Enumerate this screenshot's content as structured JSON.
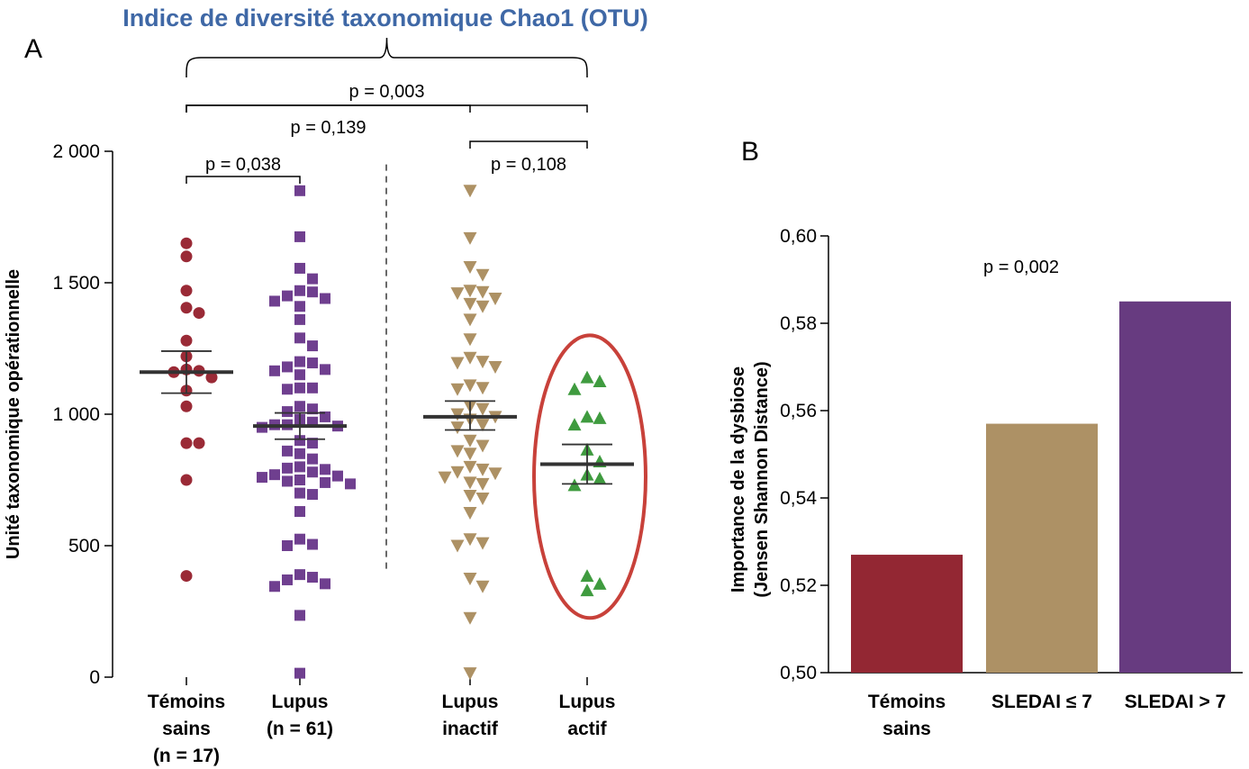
{
  "title": "Indice de diversité taxonomique Chao1 (OTU)",
  "colors": {
    "title": "#3f68a6",
    "temoins": "#9a2a36",
    "lupus": "#6f3f8f",
    "inactif": "#ad9164",
    "actif": "#3f9b3f",
    "ellipse": "#c8413a",
    "bar_temoins": "#932733",
    "bar_low": "#ad9165",
    "bar_high": "#673b80",
    "mean": "#333333"
  },
  "chart_data": [
    {
      "type": "scatter",
      "panel_label": "A",
      "ylabel": "Unité taxonomique opérationnelle",
      "ylim": [
        0,
        2000
      ],
      "yticks": [
        0,
        500,
        1000,
        1500,
        2000
      ],
      "ytick_labels": [
        "0",
        "500",
        "1 000",
        "1 500",
        "2 000"
      ],
      "groups": [
        {
          "key": "temoins",
          "label_lines": [
            "Témoins",
            "sains",
            "(n = 17)"
          ],
          "marker": "circle",
          "color_key": "temoins",
          "values": [
            1650,
            1600,
            1470,
            1405,
            1385,
            1280,
            1220,
            1170,
            1165,
            1140,
            1090,
            1030,
            890,
            890,
            750,
            385,
            1160
          ],
          "mean": 1160,
          "sem_low": 1080,
          "sem_high": 1240
        },
        {
          "key": "lupus",
          "label_lines": [
            "Lupus",
            "(n = 61)"
          ],
          "marker": "square",
          "color_key": "lupus",
          "values": [
            1850,
            1675,
            1555,
            1515,
            1470,
            1465,
            1450,
            1440,
            1430,
            1410,
            1360,
            1290,
            1260,
            1200,
            1195,
            1180,
            1170,
            1165,
            1150,
            1100,
            1100,
            1095,
            1030,
            1020,
            1010,
            990,
            980,
            970,
            960,
            960,
            955,
            950,
            900,
            890,
            860,
            850,
            830,
            800,
            795,
            790,
            780,
            770,
            765,
            760,
            750,
            745,
            740,
            735,
            700,
            695,
            630,
            525,
            505,
            500,
            390,
            380,
            370,
            355,
            345,
            235,
            15
          ],
          "mean": 955,
          "sem_low": 905,
          "sem_high": 1005
        },
        {
          "key": "inactif",
          "label_lines": [
            "Lupus",
            "inactif"
          ],
          "marker": "triangle-down",
          "color_key": "inactif",
          "values": [
            1850,
            1670,
            1560,
            1530,
            1470,
            1465,
            1460,
            1440,
            1420,
            1410,
            1360,
            1285,
            1215,
            1200,
            1195,
            1180,
            1110,
            1100,
            1095,
            1030,
            1020,
            1000,
            990,
            980,
            960,
            950,
            900,
            880,
            860,
            850,
            800,
            790,
            780,
            775,
            760,
            740,
            735,
            690,
            680,
            625,
            525,
            510,
            500,
            375,
            345,
            225,
            15
          ],
          "mean": 990,
          "sem_low": 940,
          "sem_high": 1050
        },
        {
          "key": "actif",
          "label_lines": [
            "Lupus",
            "actif"
          ],
          "marker": "triangle-up",
          "color_key": "actif",
          "values": [
            1140,
            1125,
            1095,
            990,
            985,
            960,
            865,
            820,
            770,
            755,
            730,
            385,
            355,
            330
          ],
          "mean": 810,
          "sem_low": 735,
          "sem_high": 885
        }
      ],
      "comparisons": [
        {
          "from": "temoins",
          "to": "lupus",
          "label": "p = 0,038"
        },
        {
          "from": "inactif",
          "to": "actif",
          "label": "p = 0,108"
        },
        {
          "from": "temoins",
          "to": "inactif",
          "label": "p = 0,139"
        },
        {
          "from": "temoins",
          "to": "actif",
          "label": "p = 0,003"
        }
      ]
    },
    {
      "type": "bar",
      "panel_label": "B",
      "ylabel_lines": [
        "Importance de la dysbiose",
        "(Jensen Shannon Distance)"
      ],
      "ylim": [
        0.5,
        0.6
      ],
      "yticks": [
        0.5,
        0.52,
        0.54,
        0.56,
        0.58,
        0.6
      ],
      "ytick_labels": [
        "0,50",
        "0,52",
        "0,54",
        "0,56",
        "0,58",
        "0,60"
      ],
      "categories": [
        [
          "Témoins",
          "sains"
        ],
        [
          "SLEDAI ≤ 7"
        ],
        [
          "SLEDAI > 7"
        ]
      ],
      "values": [
        0.527,
        0.557,
        0.585
      ],
      "bar_color_keys": [
        "bar_temoins",
        "bar_low",
        "bar_high"
      ],
      "annotation": "p = 0,002"
    }
  ]
}
